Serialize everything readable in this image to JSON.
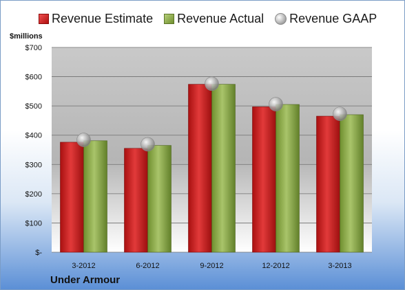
{
  "chart_data": {
    "type": "bar",
    "categories": [
      "3-2012",
      "6-2012",
      "9-2012",
      "12-2012",
      "3-2013"
    ],
    "series": [
      {
        "name": "Revenue Estimate",
        "values": [
          376,
          355,
          574,
          497,
          465
        ],
        "color": "#c81e1e"
      },
      {
        "name": "Revenue Actual",
        "values": [
          381,
          365,
          574,
          505,
          470
        ],
        "color": "#8fac4a"
      },
      {
        "name": "Revenue GAAP",
        "values": [
          384,
          369,
          576,
          506,
          473
        ],
        "color": "#a6a6a6",
        "marker": "sphere"
      }
    ],
    "ylim": [
      0,
      700
    ],
    "yticks": [
      0,
      100,
      200,
      300,
      400,
      500,
      600,
      700
    ],
    "ytick_labels": [
      "$-",
      "$100",
      "$200",
      "$300",
      "$400",
      "$500",
      "$600",
      "$700"
    ],
    "ylabel": "$millions",
    "xlabel": "Under Armour",
    "grid": true,
    "legend_position": "top"
  }
}
